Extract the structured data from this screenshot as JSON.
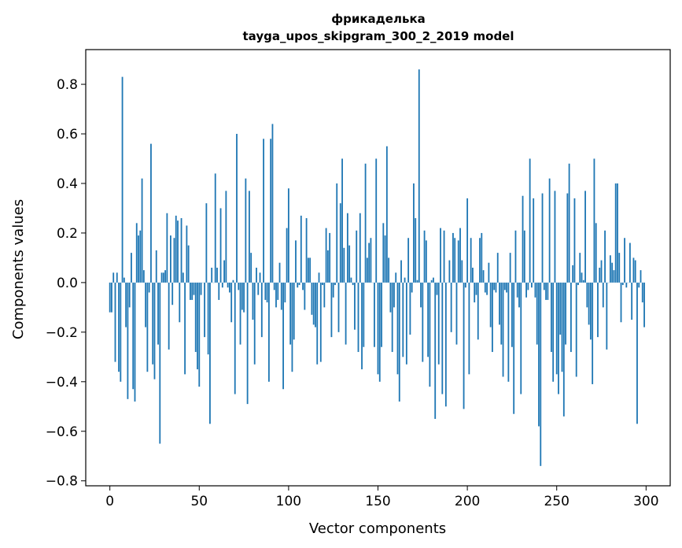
{
  "chart_data": {
    "type": "bar",
    "title": "фрикаделька",
    "subtitle": "tayga_upos_skipgram_300_2_2019 model",
    "xlabel": "Vector components",
    "ylabel": "Components values",
    "xlim": [
      -13.5,
      313.5
    ],
    "ylim": [
      -0.82,
      0.94
    ],
    "x_ticks": [
      0,
      50,
      100,
      150,
      200,
      250,
      300
    ],
    "x_tick_labels": [
      "0",
      "50",
      "100",
      "150",
      "200",
      "250",
      "300"
    ],
    "y_ticks": [
      -0.8,
      -0.6,
      -0.4,
      -0.2,
      0.0,
      0.2,
      0.4,
      0.6,
      0.8
    ],
    "y_tick_labels": [
      "−0.8",
      "−0.6",
      "−0.4",
      "−0.2",
      "0.0",
      "0.2",
      "0.4",
      "0.6",
      "0.8"
    ],
    "bar_color": "#1f77b4",
    "grid": false,
    "x": "0..299 (one bar per vector component)",
    "values": [
      -0.12,
      -0.12,
      0.04,
      -0.32,
      0.04,
      -0.36,
      -0.4,
      0.83,
      0.02,
      -0.18,
      -0.47,
      -0.1,
      0.12,
      -0.43,
      -0.48,
      0.24,
      0.19,
      0.21,
      0.42,
      0.05,
      -0.18,
      -0.36,
      -0.04,
      0.56,
      -0.33,
      -0.39,
      0.13,
      -0.25,
      -0.65,
      0.04,
      0.04,
      0.05,
      0.28,
      -0.27,
      0.19,
      -0.09,
      0.18,
      0.27,
      0.25,
      -0.16,
      0.26,
      0.04,
      -0.37,
      0.23,
      0.15,
      -0.07,
      -0.07,
      -0.05,
      -0.28,
      -0.35,
      -0.42,
      -0.05,
      0.0,
      -0.22,
      0.32,
      -0.29,
      -0.57,
      0.06,
      0.0,
      0.44,
      0.06,
      -0.07,
      0.3,
      -0.02,
      0.09,
      0.37,
      -0.02,
      -0.04,
      -0.16,
      0.01,
      -0.45,
      0.6,
      -0.03,
      -0.25,
      -0.11,
      -0.12,
      0.42,
      -0.49,
      0.37,
      0.12,
      -0.15,
      -0.33,
      0.06,
      -0.05,
      0.04,
      -0.22,
      0.58,
      -0.07,
      -0.08,
      -0.4,
      0.58,
      0.64,
      -0.03,
      -0.1,
      -0.07,
      0.08,
      -0.11,
      -0.43,
      -0.08,
      0.22,
      0.38,
      -0.25,
      -0.36,
      -0.23,
      0.17,
      -0.02,
      -0.01,
      0.27,
      -0.03,
      -0.11,
      0.26,
      0.1,
      0.1,
      -0.13,
      -0.17,
      -0.18,
      -0.33,
      0.04,
      -0.32,
      -0.01,
      -0.1,
      0.22,
      0.13,
      0.2,
      -0.22,
      -0.06,
      -0.01,
      0.4,
      -0.2,
      0.32,
      0.5,
      0.14,
      -0.25,
      0.28,
      0.15,
      0.02,
      -0.01,
      -0.19,
      0.21,
      -0.28,
      0.28,
      -0.35,
      -0.26,
      0.48,
      0.1,
      0.16,
      0.18,
      0.0,
      -0.26,
      0.5,
      -0.37,
      -0.4,
      -0.26,
      0.24,
      0.19,
      0.55,
      0.1,
      -0.12,
      -0.28,
      -0.1,
      0.04,
      -0.37,
      -0.48,
      0.09,
      -0.3,
      0.02,
      -0.33,
      0.18,
      -0.21,
      -0.04,
      0.4,
      0.26,
      0.01,
      0.86,
      -0.1,
      -0.32,
      0.21,
      0.17,
      -0.3,
      -0.42,
      0.01,
      0.02,
      -0.55,
      -0.05,
      -0.33,
      0.22,
      -0.45,
      0.21,
      -0.5,
      0.0,
      0.09,
      -0.2,
      0.2,
      0.18,
      -0.25,
      0.17,
      0.22,
      0.09,
      -0.51,
      -0.02,
      0.34,
      -0.37,
      0.18,
      0.06,
      -0.08,
      -0.05,
      -0.23,
      0.18,
      0.2,
      0.05,
      -0.04,
      -0.05,
      0.08,
      -0.18,
      -0.28,
      -0.03,
      -0.04,
      0.12,
      -0.17,
      -0.25,
      -0.38,
      -0.03,
      -0.04,
      -0.4,
      0.12,
      -0.26,
      -0.53,
      0.21,
      -0.06,
      -0.1,
      -0.45,
      0.35,
      0.21,
      -0.06,
      -0.03,
      0.5,
      -0.02,
      0.34,
      -0.06,
      -0.25,
      -0.58,
      -0.74,
      0.36,
      -0.03,
      -0.07,
      -0.07,
      0.42,
      -0.28,
      -0.4,
      0.37,
      -0.37,
      -0.45,
      -0.21,
      -0.36,
      -0.54,
      -0.25,
      0.36,
      0.48,
      -0.28,
      0.07,
      0.34,
      -0.38,
      -0.01,
      0.12,
      0.04,
      0.01,
      0.37,
      -0.1,
      -0.17,
      -0.23,
      -0.41,
      0.5,
      0.24,
      -0.22,
      0.06,
      0.09,
      -0.1,
      0.21,
      -0.27,
      0.0,
      0.11,
      0.08,
      0.05,
      0.4,
      0.4,
      0.12,
      -0.16,
      -0.01,
      0.18,
      -0.02,
      0.0,
      0.16,
      -0.15,
      0.1,
      0.09,
      -0.57,
      -0.02,
      0.05,
      -0.08,
      -0.18
    ]
  }
}
